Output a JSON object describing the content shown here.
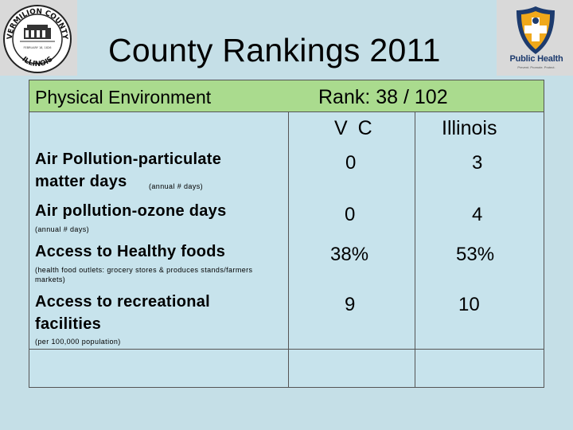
{
  "header": {
    "title": "County Rankings 2011",
    "left_logo": {
      "icon": "county-seal",
      "ring_top": "VERMILION COUNTY",
      "ring_bottom": "ILLINOIS",
      "inner": "FEBRUARY 18, 1826"
    },
    "right_logo": {
      "icon": "public-health-shield",
      "name": "Public Health",
      "tagline": "Prevent. Promote. Protect."
    }
  },
  "table": {
    "section_label": "Physical Environment",
    "rank_text": "Rank:   38 / 102",
    "col_vc": "V C",
    "col_il": "Illinois",
    "rows": [
      {
        "label": "Air Pollution-particulate",
        "label2": "matter days",
        "note": "(annual # days)",
        "vc": "0",
        "il": "3"
      },
      {
        "label": "Air pollution-ozone days",
        "note": "(annual # days)",
        "vc": "0",
        "il": "4"
      },
      {
        "label": "Access to Healthy foods",
        "note": "(health food outlets: grocery stores & produces stands/farmers",
        "note2": "markets)",
        "vc": "38%",
        "il": "53%"
      },
      {
        "label": "Access to recreational",
        "label2": "facilities",
        "note": "(per 100,000 population)",
        "vc": "9",
        "il": "10"
      }
    ]
  },
  "colors": {
    "background": "#c5dfe7",
    "header_row": "#aadb8e",
    "logo_panel": "#d9d9d9",
    "brand_navy": "#1d3b6e",
    "brand_gold": "#f0a81a"
  }
}
